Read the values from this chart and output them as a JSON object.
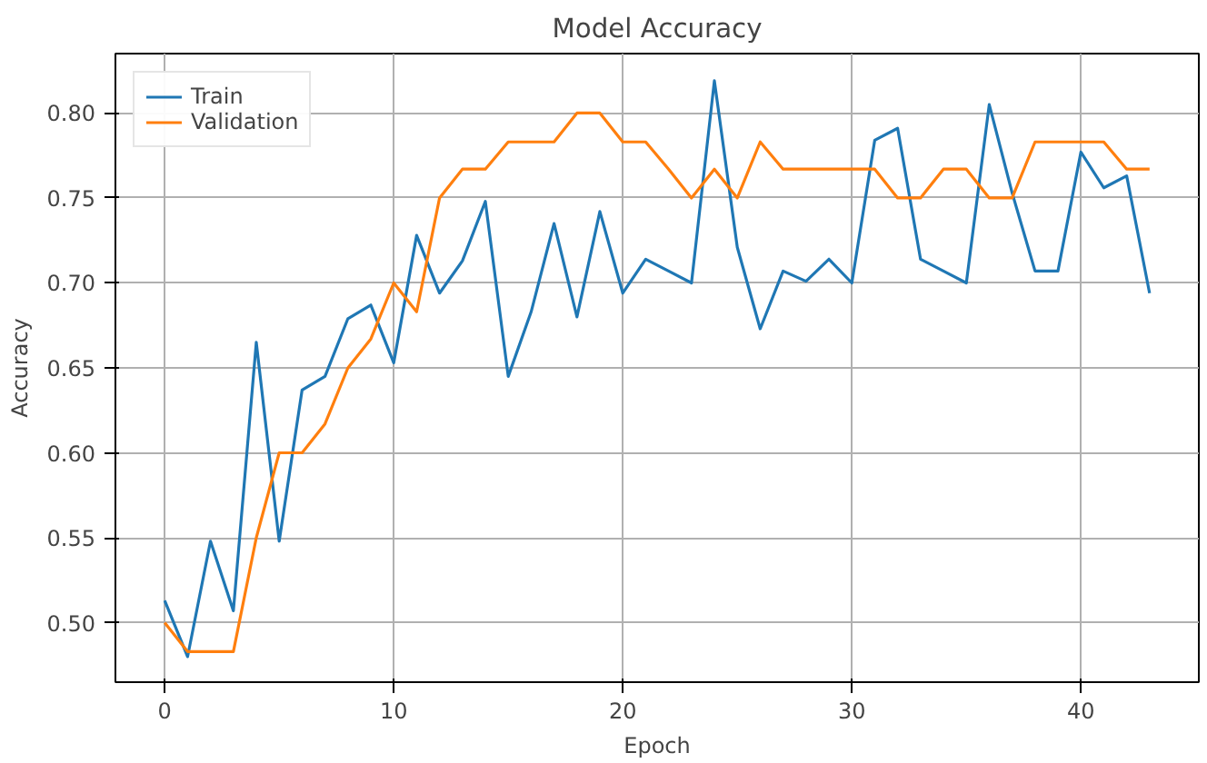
{
  "chart_data": {
    "type": "line",
    "title": "Model Accuracy",
    "xlabel": "Epoch",
    "ylabel": "Accuracy",
    "x": [
      0,
      1,
      2,
      3,
      4,
      5,
      6,
      7,
      8,
      9,
      10,
      11,
      12,
      13,
      14,
      15,
      16,
      17,
      18,
      19,
      20,
      21,
      22,
      23,
      24,
      25,
      26,
      27,
      28,
      29,
      30,
      31,
      32,
      33,
      34,
      35,
      36,
      37,
      38,
      39,
      40,
      41,
      42,
      43
    ],
    "series": [
      {
        "name": "Train",
        "color": "#1f77b4",
        "values": [
          0.513,
          0.48,
          0.548,
          0.507,
          0.665,
          0.548,
          0.637,
          0.645,
          0.679,
          0.687,
          0.653,
          0.728,
          0.694,
          0.713,
          0.748,
          0.645,
          0.683,
          0.735,
          0.68,
          0.742,
          0.694,
          0.714,
          0.707,
          0.7,
          0.819,
          0.721,
          0.673,
          0.707,
          0.701,
          0.714,
          0.7,
          0.784,
          0.791,
          0.714,
          0.707,
          0.7,
          0.805,
          0.753,
          0.707,
          0.707,
          0.777,
          0.756,
          0.763,
          0.694
        ]
      },
      {
        "name": "Validation",
        "color": "#ff7f0e",
        "values": [
          0.5,
          0.483,
          0.483,
          0.483,
          0.55,
          0.6,
          0.6,
          0.617,
          0.65,
          0.667,
          0.7,
          0.683,
          0.75,
          0.767,
          0.767,
          0.783,
          0.783,
          0.783,
          0.8,
          0.8,
          0.783,
          0.783,
          0.767,
          0.75,
          0.767,
          0.75,
          0.783,
          0.767,
          0.767,
          0.767,
          0.767,
          0.767,
          0.75,
          0.75,
          0.767,
          0.767,
          0.75,
          0.75,
          0.783,
          0.783,
          0.783,
          0.783,
          0.767,
          0.767
        ]
      }
    ],
    "xlim": [
      -2.15,
      45.15
    ],
    "ylim": [
      0.465,
      0.835
    ],
    "xticks": [
      0,
      10,
      20,
      30,
      40
    ],
    "yticks": [
      {
        "value": 0.5,
        "label": "0.50"
      },
      {
        "value": 0.55,
        "label": "0.55"
      },
      {
        "value": 0.6,
        "label": "0.60"
      },
      {
        "value": 0.65,
        "label": "0.65"
      },
      {
        "value": 0.7,
        "label": "0.70"
      },
      {
        "value": 0.75,
        "label": "0.75"
      },
      {
        "value": 0.8,
        "label": "0.80"
      }
    ],
    "grid": true,
    "legend": "top left",
    "line_style": "solid"
  }
}
